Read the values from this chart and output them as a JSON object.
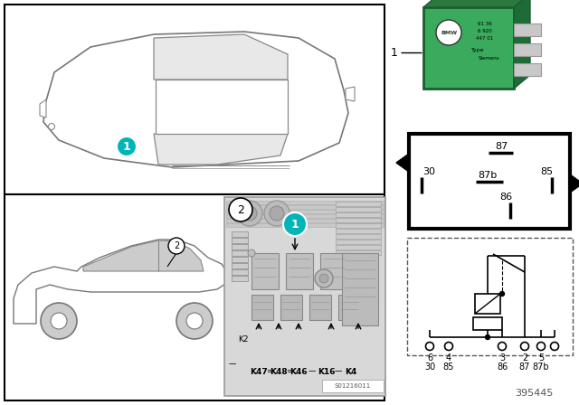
{
  "bg_color": "#ffffff",
  "relay_green": "#3aaa5c",
  "relay_dark_green": "#1a6b35",
  "teal_color": "#00b5b8",
  "part_number": "395445",
  "fuse_labels": [
    "K47",
    "K48",
    "K46",
    "K16",
    "K4"
  ],
  "stamp": "S01216011"
}
